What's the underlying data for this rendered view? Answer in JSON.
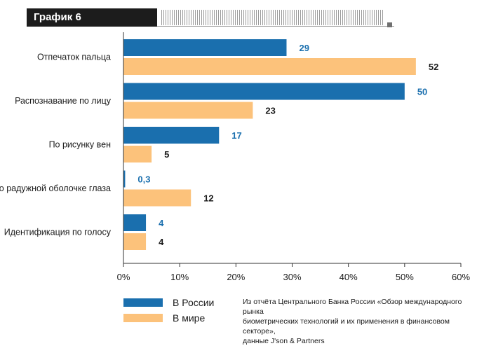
{
  "header": {
    "title": "График 6"
  },
  "chart_data": {
    "type": "bar",
    "orientation": "horizontal",
    "categories": [
      "Отпечаток пальца",
      "Распознавание по лицу",
      "По рисунку вен",
      "По радужной оболочке глаза",
      "Идентификация по голосу"
    ],
    "series": [
      {
        "name": "В России",
        "color": "#1a6fae",
        "values": [
          29,
          50,
          17,
          0.3,
          4
        ],
        "labels": [
          "29",
          "50",
          "17",
          "0,3",
          "4"
        ]
      },
      {
        "name": "В мире",
        "color": "#fcc27b",
        "values": [
          52,
          23,
          5,
          12,
          4
        ],
        "labels": [
          "52",
          "23",
          "5",
          "12",
          "4"
        ]
      }
    ],
    "xlim": [
      0,
      60
    ],
    "xticks": [
      0,
      10,
      20,
      30,
      40,
      50,
      60
    ],
    "xtick_labels": [
      "0%",
      "10%",
      "20%",
      "30%",
      "40%",
      "50%",
      "60%"
    ],
    "legend_position": "bottom-left",
    "grid": false
  },
  "source": {
    "line1": "Из отчёта Центрального Банка России «Обзор международного рынка",
    "line2": "биометрических технологий и их применения в финансовом секторе»,",
    "line3": "данные J'son & Partners"
  }
}
